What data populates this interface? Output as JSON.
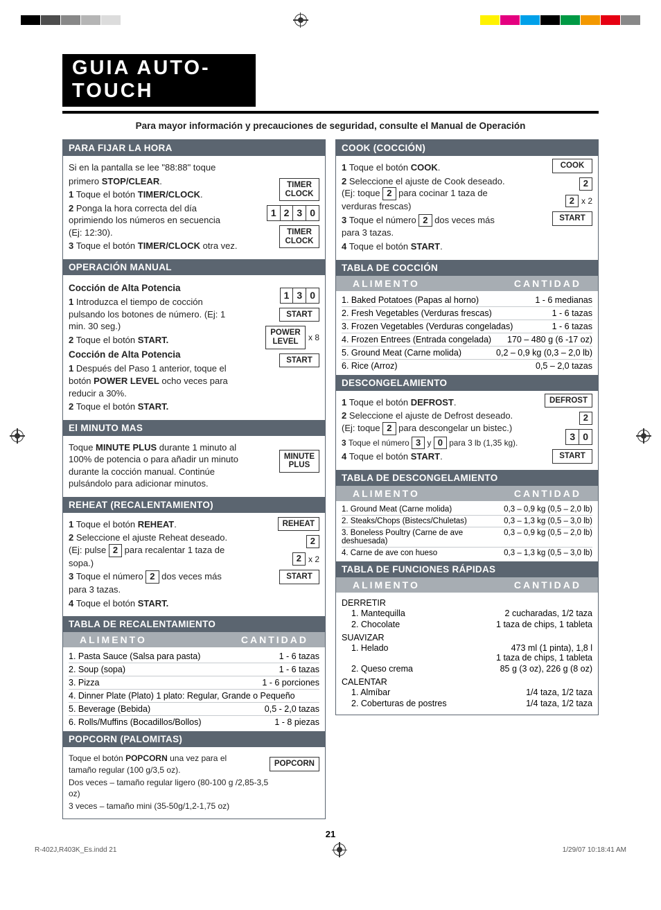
{
  "regColors": [
    "#000000",
    "#555555",
    "#888888",
    "#b5b5b5",
    "#dcdcdc",
    "#ffffff",
    "#f2e600",
    "#e6007e",
    "#00a0e1",
    "#1a1a1a",
    "#00a651",
    "#ef7d00",
    "#e2001a",
    "#7c7c7c"
  ],
  "title": "GUIA AUTO-TOUCH",
  "subtitle": "Para mayor información y precauciones de seguridad, consulte el Manual de Operación",
  "pageNum": "21",
  "footerLeft": "R-402J,R403K_Es.indd   21",
  "footerRight": "1/29/07   10:18:41 AM",
  "tblHead": {
    "food": "ALIMENTO",
    "qty": "CANTIDAD"
  },
  "btns": {
    "timerClock": "TIMER\nCLOCK",
    "start": "START",
    "powerLevel": "POWER\nLEVEL",
    "minutePlus": "MINUTE\nPLUS",
    "reheat": "REHEAT",
    "popcorn": "POPCORN",
    "cook": "COOK",
    "defrost": "DEFROST"
  },
  "left": {
    "clock": {
      "head": "PARA FIJAR LA HORA",
      "intro1": "Si en la pantalla se lee \"88:88\" toque",
      "intro2a": "primero ",
      "intro2b": "STOP/CLEAR",
      "s1a": "Toque el botón ",
      "s1b": "TIMER/CLOCK",
      "s2": "Ponga la hora correcta del día oprimiendo los números en secuencia (Ej: 12:30).",
      "s3a": "Toque el botón ",
      "s3b": "TIMER/CLOCK",
      "s3c": " otra vez.",
      "digits": [
        "1",
        "2",
        "3",
        "0"
      ]
    },
    "manual": {
      "head": "OPERACIÓN MANUAL",
      "sub1": "Cocción de Alta Potencia",
      "s1": "Introduzca el tiempo de cocción pulsando los botones de número. (Ej: 1 min. 30 seg.)",
      "s2a": "Toque el botón ",
      "s2b": "START.",
      "sub2": "Cocción de Alta Potencia",
      "p1a": "Después del Paso 1 anterior, toque el botón ",
      "p1b": "POWER LEVEL",
      "p1c": " ocho veces para reducir a 30%.",
      "p2a": "Toque el botón ",
      "p2b": "START.",
      "digits": [
        "1",
        "3",
        "0"
      ],
      "x8": "x 8"
    },
    "minute": {
      "head": "El MINUTO MAS",
      "t1": "Toque ",
      "t1b": "MINUTE PLUS",
      "t1c": " durante 1 minuto al 100% de potencia o para añadir un minuto durante la cocción manual. Continúe pulsándolo para adicionar minutos."
    },
    "reheat": {
      "head": "REHEAT (RECALENTAMIENTO)",
      "s1a": "Toque el botón ",
      "s1b": "REHEAT",
      "s2a": "Seleccione el ajuste Reheat deseado. (Ej: pulse ",
      "s2b": " para recalentar 1 taza de sopa.)",
      "s3a": "Toque el número ",
      "s3b": " dos veces más para 3 tazas.",
      "s4a": "Toque el botón ",
      "s4b": "START.",
      "x2": "x 2",
      "tableHead": "TABLA DE RECALENTAMIENTO",
      "rows": [
        {
          "f": "1. Pasta Sauce (Salsa para pasta)",
          "q": "1 - 6 tazas"
        },
        {
          "f": "2. Soup (sopa)",
          "q": "1 - 6 tazas"
        },
        {
          "f": "3. Pizza",
          "q": "1 - 6 porciones"
        },
        {
          "f": "4. Dinner Plate (Plato) 1 plato: Regular, Grande o Pequeño",
          "q": ""
        },
        {
          "f": "5. Beverage (Bebida)",
          "q": "0,5 - 2,0 tazas"
        },
        {
          "f": "6. Rolls/Muffins (Bocadillos/Bollos)",
          "q": "1 - 8 piezas"
        }
      ]
    },
    "popcorn": {
      "head": "POPCORN (PALOMITAS)",
      "t1a": "Toque el botón ",
      "t1b": "POPCORN",
      "t1c": " una vez para el tamaño regular (100 g/3,5 oz).",
      "t2": "Dos veces – tamaño regular ligero (80-100 g /2,85-3,5 oz)",
      "t3": "3 veces – tamaño mini (35-50g/1,2-1,75 oz)"
    }
  },
  "right": {
    "cook": {
      "head": "COOK (COCCIÓN)",
      "s1a": "Toque el botón ",
      "s1b": "COOK",
      "s2a": "Seleccione el ajuste de Cook deseado. (Ej: toque ",
      "s2b": " para cocinar 1 taza de verduras frescas)",
      "s3a": "Toque el número ",
      "s3b": " dos veces más para 3 tazas.",
      "s4a": "Toque el botón ",
      "s4b": "START",
      "x2": "x 2",
      "tableHead": "TABLA DE COCCIÓN",
      "rows": [
        {
          "f": "1. Baked Potatoes (Papas al horno)",
          "q": "1 - 6 medianas"
        },
        {
          "f": "2. Fresh Vegetables (Verduras frescas)",
          "q": "1 - 6 tazas"
        },
        {
          "f": "3. Frozen Vegetables (Verduras congeladas)",
          "q": "1 - 6 tazas"
        },
        {
          "f": "4. Frozen Entrees (Entrada congelada)",
          "q": "170 – 480 g (6 -17 oz)"
        },
        {
          "f": "5. Ground Meat (Carne molida)",
          "q": "0,2 – 0,9 kg (0,3 – 2,0 lb)"
        },
        {
          "f": "6. Rice (Arroz)",
          "q": "0,5 – 2,0 tazas"
        }
      ]
    },
    "defrost": {
      "head": "DESCONGELAMIENTO",
      "s1a": "Toque el botón ",
      "s1b": "DEFROST",
      "s2a": "Seleccione el ajuste de Defrost deseado. (Ej: toque ",
      "s2b": " para descongelar un bistec.)",
      "s3a": "Toque el número ",
      "s3b1": "3",
      "s3b2": "0",
      "s3c": " para 3 lb (1,35 kg).",
      "s3pre": " y ",
      "s4a": "Toque el botón ",
      "s4b": "START",
      "digits2": [
        "3",
        "0"
      ],
      "tableHead": "TABLA DE DESCONGELAMIENTO",
      "rows": [
        {
          "f": "1. Ground Meat (Carne molida)",
          "q": "0,3 – 0,9 kg (0,5 – 2,0 lb)"
        },
        {
          "f": "2. Steaks/Chops (Bistecs/Chuletas)",
          "q": "0,3 – 1,3 kg (0,5 – 3,0 lb)"
        },
        {
          "f": "3. Boneless Poultry (Carne de ave deshuesada)",
          "q": "0,3 – 0,9 kg (0,5 – 2,0 lb)"
        },
        {
          "f": "4. Carne de ave con hueso",
          "q": "0,3 – 1,3 kg (0,5 – 3,0 lb)"
        }
      ]
    },
    "quick": {
      "head": "TABLA DE FUNCIONES RÁPIDAS",
      "cats": [
        {
          "name": "DERRETIR",
          "items": [
            {
              "f": "1. Mantequilla",
              "q": "2 cucharadas, 1/2 taza"
            },
            {
              "f": "2. Chocolate",
              "q": "1 taza de chips, 1 tableta"
            }
          ]
        },
        {
          "name": "SUAVIZAR",
          "items": [
            {
              "f": "1. Helado",
              "q": "473 ml (1 pinta), 1,8 l\n1 taza de chips, 1 tableta"
            },
            {
              "f": "2. Queso crema",
              "q": "85 g (3 oz), 226 g (8 oz)"
            }
          ]
        },
        {
          "name": "CALENTAR",
          "items": [
            {
              "f": "1. Almíbar",
              "q": "1/4 taza, 1/2 taza"
            },
            {
              "f": "2. Coberturas de postres",
              "q": "1/4 taza, 1/2 taza"
            }
          ]
        }
      ]
    }
  }
}
